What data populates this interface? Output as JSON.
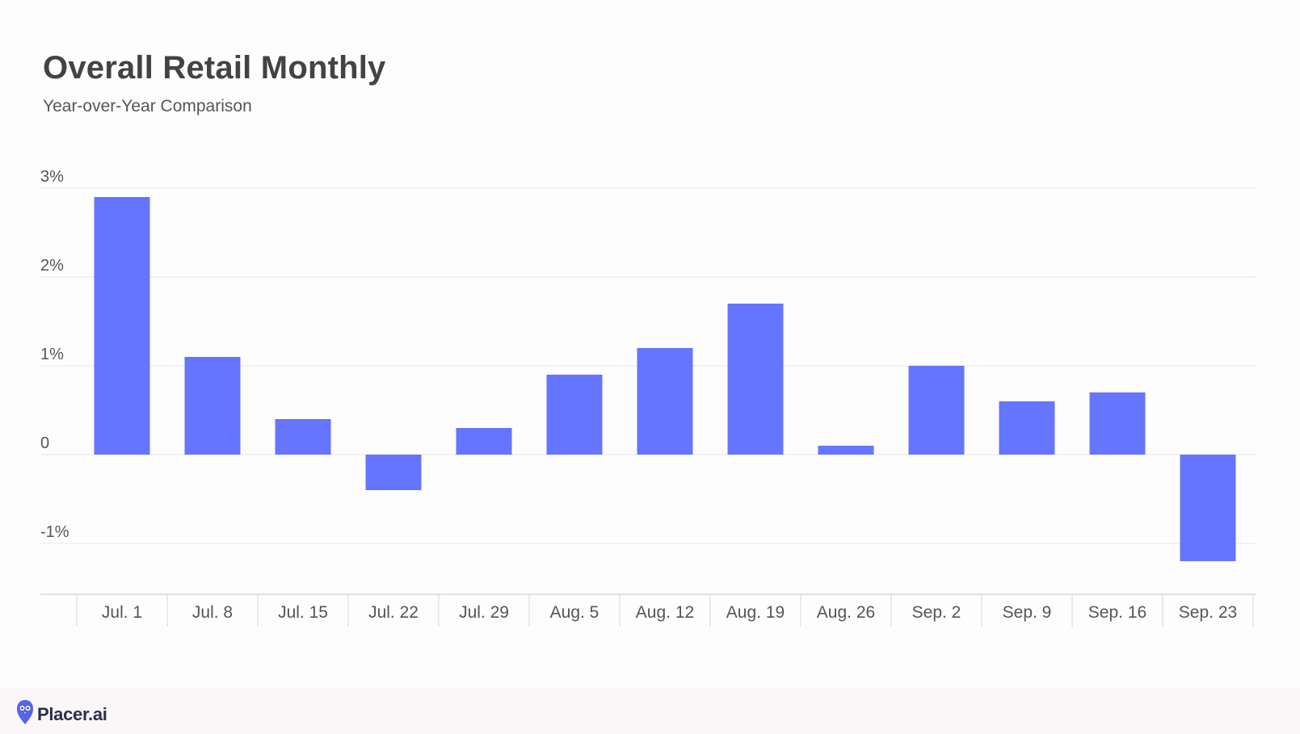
{
  "header": {
    "title": "Overall Retail Monthly",
    "subtitle": "Year-over-Year Comparison"
  },
  "footer": {
    "brand": "Placer.ai"
  },
  "colors": {
    "bar": "#6675fd",
    "grid": "#e6e6e6",
    "axis": "#d8d8d8",
    "text": "#555555"
  },
  "chart_data": {
    "type": "bar",
    "title": "Overall Retail Monthly",
    "subtitle": "Year-over-Year Comparison",
    "xlabel": "",
    "ylabel": "",
    "categories": [
      "Jul. 1",
      "Jul. 8",
      "Jul. 15",
      "Jul. 22",
      "Jul. 29",
      "Aug. 5",
      "Aug. 12",
      "Aug. 19",
      "Aug. 26",
      "Sep. 2",
      "Sep. 9",
      "Sep. 16",
      "Sep. 23"
    ],
    "values": [
      2.9,
      1.1,
      0.4,
      -0.4,
      0.3,
      0.9,
      1.2,
      1.7,
      0.1,
      1.0,
      0.6,
      0.7,
      -1.2
    ],
    "unit": "%",
    "ylim": [
      -1.5,
      3
    ],
    "yticks": [
      3,
      2,
      1,
      0,
      -1
    ],
    "ytick_labels": [
      "3%",
      "2%",
      "1%",
      "0",
      "-1%"
    ],
    "grid": true,
    "legend": "none"
  }
}
